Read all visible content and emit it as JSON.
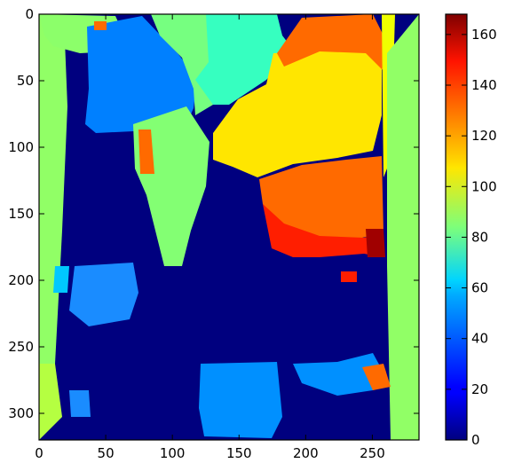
{
  "chart_data": {
    "type": "heatmap",
    "title": "",
    "xlabel": "",
    "ylabel": "",
    "xlim": [
      0,
      285
    ],
    "ylim": [
      320,
      0
    ],
    "x_ticks": [
      0,
      50,
      100,
      150,
      200,
      250
    ],
    "y_ticks": [
      0,
      50,
      100,
      150,
      200,
      250,
      300
    ],
    "colormap": "jet",
    "colorbar": {
      "range": [
        0,
        168
      ],
      "ticks": [
        0,
        20,
        40,
        60,
        80,
        100,
        120,
        140,
        160
      ]
    },
    "regions": [
      {
        "name": "background-dark",
        "value": 0
      },
      {
        "name": "left-border-strip",
        "value": 85,
        "x": [
          0,
          20
        ],
        "y": [
          0,
          300
        ]
      },
      {
        "name": "right-border-strip",
        "value": 85,
        "x": [
          262,
          285
        ],
        "y": [
          20,
          320
        ]
      },
      {
        "name": "top-left-block",
        "value": 85,
        "x": [
          20,
          55
        ],
        "y": [
          0,
          30
        ]
      },
      {
        "name": "top-center-block",
        "value": 75,
        "x": [
          130,
          185
        ],
        "y": [
          0,
          25
        ]
      },
      {
        "name": "top-cyan-block",
        "value": 65,
        "x": [
          170,
          250
        ],
        "y": [
          0,
          40
        ]
      },
      {
        "name": "left-blue-block",
        "value": 40,
        "x": [
          55,
          140
        ],
        "y": [
          10,
          100
        ]
      },
      {
        "name": "mid-green-block",
        "value": 80,
        "x": [
          125,
          155
        ],
        "y": [
          110,
          250
        ]
      },
      {
        "name": "yellow-region",
        "value": 110,
        "x": [
          150,
          265
        ],
        "y": [
          40,
          150
        ]
      },
      {
        "name": "orange-region",
        "value": 130,
        "x": [
          165,
          265
        ],
        "y": [
          0,
          170
        ]
      },
      {
        "name": "red-region",
        "value": 150,
        "x": [
          170,
          258
        ],
        "y": [
          150,
          180
        ]
      },
      {
        "name": "dark-red-spot",
        "value": 165,
        "x": [
          248,
          260
        ],
        "y": [
          160,
          180
        ]
      },
      {
        "name": "bottom-blue-block",
        "value": 40,
        "x": [
          120,
          185
        ],
        "y": [
          255,
          320
        ]
      },
      {
        "name": "bottom-right-blue",
        "value": 40,
        "x": [
          185,
          262
        ],
        "y": [
          255,
          290
        ]
      },
      {
        "name": "bottom-left-yellow",
        "value": 95,
        "x": [
          0,
          35
        ],
        "y": [
          290,
          320
        ]
      }
    ]
  }
}
